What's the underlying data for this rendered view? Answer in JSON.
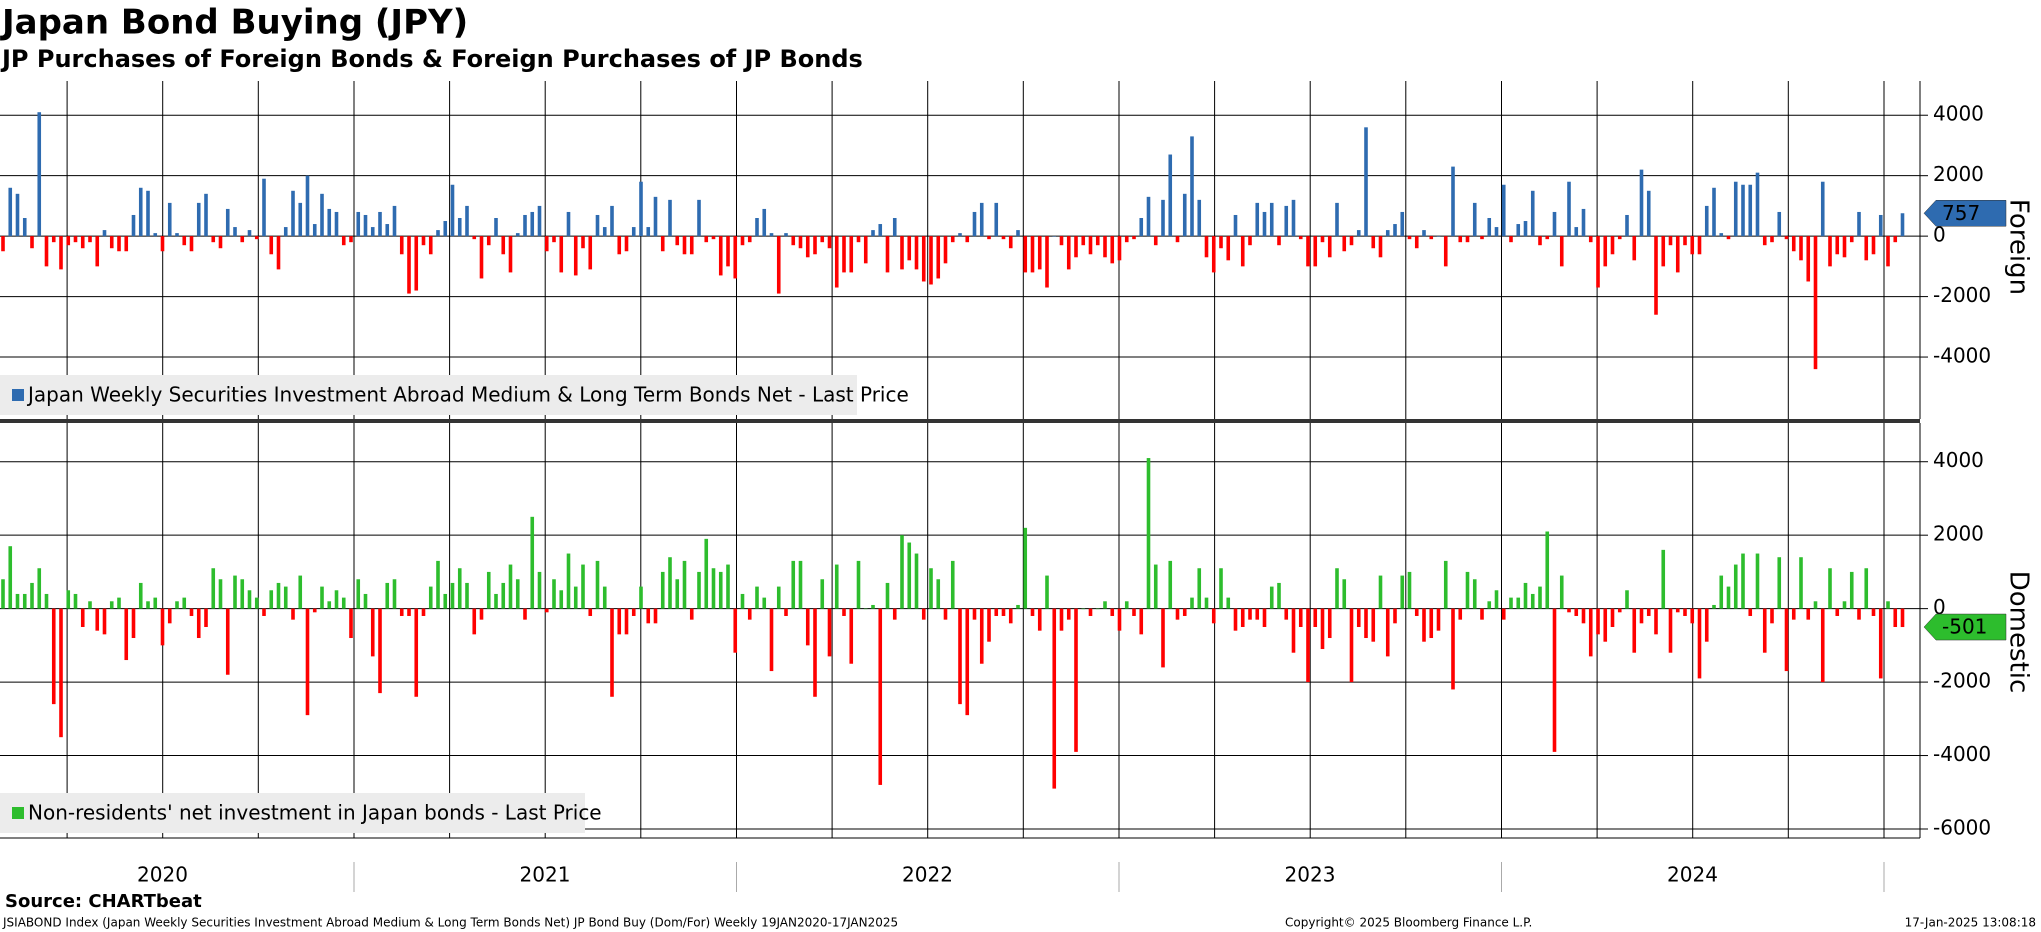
{
  "header": {
    "title": "Japan Bond Buying (JPY)",
    "subtitle": "JP Purchases of Foreign Bonds & Foreign Purchases of JP Bonds"
  },
  "x_axis": {
    "labels": [
      "2020",
      "2021",
      "2022",
      "2023",
      "2024"
    ]
  },
  "chart_data": [
    {
      "type": "bar",
      "axis_label": "Foreign",
      "ylim": [
        -6000,
        5000
      ],
      "yticks": [
        -4000,
        -2000,
        0,
        2000,
        4000
      ],
      "grid": true,
      "legend": "bottom-left",
      "tag_text_color": "#ffffff",
      "series": [
        {
          "name": "Japan Weekly Securities Investment Abroad Medium & Long Term Bonds Net - Last Price",
          "color": "#2e6bb0",
          "negative_color": "#ff0000",
          "values": [
            -500,
            1600,
            1400,
            600,
            -400,
            4100,
            -1000,
            -200,
            -1100,
            -300,
            -200,
            -400,
            -200,
            -1000,
            200,
            -400,
            -500,
            -500,
            700,
            1600,
            1500,
            100,
            -500,
            1100,
            100,
            -300,
            -500,
            1100,
            1400,
            -200,
            -400,
            900,
            300,
            -200,
            200,
            -100,
            1900,
            -600,
            -1100,
            300,
            1500,
            1100,
            2000,
            400,
            1400,
            900,
            800,
            -300,
            -200,
            800,
            700,
            300,
            800,
            400,
            1000,
            -600,
            -1900,
            -1800,
            -300,
            -600,
            200,
            500,
            1700,
            600,
            1000,
            -100,
            -1400,
            -300,
            600,
            -600,
            -1200,
            100,
            700,
            800,
            1000,
            -500,
            -200,
            -1200,
            800,
            -1300,
            -400,
            -1100,
            700,
            300,
            1000,
            -600,
            -500,
            300,
            1800,
            300,
            1300,
            -500,
            1200,
            -300,
            -600,
            -600,
            1200,
            -200,
            -100,
            -1300,
            -1000,
            -1400,
            -300,
            -200,
            600,
            900,
            100,
            -1900,
            100,
            -300,
            -400,
            -700,
            -600,
            -200,
            -400,
            -1700,
            -1200,
            -1200,
            -200,
            -900,
            200,
            400,
            -1200,
            600,
            -1100,
            -800,
            -1100,
            -1500,
            -1600,
            -1400,
            -900,
            -200,
            100,
            -200,
            800,
            1100,
            -100,
            1100,
            -100,
            -400,
            200,
            -1200,
            -1200,
            -1100,
            -1700,
            0,
            -300,
            -1100,
            -700,
            -300,
            -600,
            -300,
            -700,
            -900,
            -800,
            -200,
            -100,
            600,
            1300,
            -300,
            1200,
            2700,
            -200,
            1400,
            3300,
            1200,
            -700,
            -1200,
            -400,
            -800,
            700,
            -1000,
            -300,
            1100,
            800,
            1100,
            -300,
            1000,
            1200,
            -100,
            -1000,
            -1000,
            -200,
            -700,
            1100,
            -500,
            -300,
            200,
            3600,
            -400,
            -700,
            200,
            400,
            800,
            -100,
            -400,
            200,
            -100,
            0,
            -1000,
            2300,
            -200,
            -200,
            1100,
            -100,
            600,
            300,
            1700,
            -200,
            400,
            500,
            1500,
            -300,
            -100,
            800,
            -1000,
            1800,
            300,
            900,
            -200,
            -1700,
            -1000,
            -600,
            -100,
            700,
            -800,
            2200,
            1500,
            -2600,
            -1000,
            -300,
            -1200,
            -300,
            -600,
            -600,
            1000,
            1600,
            100,
            -100,
            1800,
            1700,
            1700,
            2100,
            -300,
            -200,
            800,
            -100,
            -500,
            -800,
            -1500,
            -4400,
            1800,
            -1000,
            -600,
            -700,
            -200,
            800,
            -800,
            -600,
            700,
            -1000,
            -200,
            757
          ]
        }
      ]
    },
    {
      "type": "bar",
      "axis_label": "Domestic",
      "ylim": [
        -6000,
        5000
      ],
      "yticks": [
        -6000,
        -4000,
        -2000,
        0,
        2000,
        4000
      ],
      "grid": true,
      "legend": "bottom-left",
      "tag_text_color": "#000000",
      "series": [
        {
          "name": "Non-residents' net investment in Japan bonds - Last Price",
          "color": "#2dbd2d",
          "negative_color": "#ff0000",
          "values": [
            800,
            1700,
            400,
            400,
            700,
            1100,
            400,
            -2600,
            -3500,
            500,
            400,
            -500,
            200,
            -600,
            -700,
            200,
            300,
            -1400,
            -800,
            700,
            200,
            300,
            -1000,
            -400,
            200,
            300,
            -200,
            -800,
            -500,
            1100,
            800,
            -1800,
            900,
            800,
            500,
            300,
            -200,
            500,
            700,
            600,
            -300,
            900,
            -2900,
            -100,
            600,
            200,
            500,
            300,
            -800,
            800,
            400,
            -1300,
            -2300,
            700,
            800,
            -200,
            -200,
            -2400,
            -200,
            600,
            1300,
            400,
            700,
            1100,
            700,
            -700,
            -300,
            1000,
            400,
            700,
            1200,
            800,
            -300,
            2500,
            1000,
            -100,
            800,
            500,
            1500,
            600,
            1200,
            -200,
            1300,
            600,
            -2400,
            -700,
            -700,
            -200,
            600,
            -400,
            -400,
            1000,
            1400,
            800,
            1300,
            -300,
            1000,
            1900,
            1100,
            1000,
            1200,
            -1200,
            400,
            -300,
            600,
            300,
            -1700,
            600,
            -200,
            1300,
            1300,
            -1000,
            -2400,
            800,
            -1300,
            1200,
            -200,
            -1500,
            1300,
            0,
            100,
            -4800,
            700,
            -300,
            2000,
            1800,
            1500,
            -300,
            1100,
            800,
            -300,
            1300,
            -2600,
            -2900,
            -300,
            -1500,
            -900,
            -200,
            -200,
            -400,
            100,
            2200,
            -200,
            -600,
            900,
            -4900,
            -600,
            -300,
            -3900,
            0,
            -200,
            0,
            200,
            -200,
            -600,
            200,
            -200,
            -700,
            4100,
            1200,
            -1600,
            1300,
            -300,
            -200,
            300,
            1100,
            300,
            -400,
            1100,
            300,
            -600,
            -500,
            -300,
            -300,
            -500,
            600,
            700,
            -300,
            -1200,
            -500,
            -2000,
            -500,
            -1100,
            -800,
            1100,
            800,
            -2000,
            -500,
            -800,
            -900,
            900,
            -1300,
            -400,
            900,
            1000,
            -200,
            -900,
            -800,
            -600,
            1300,
            -2200,
            -300,
            1000,
            800,
            -300,
            200,
            500,
            -300,
            300,
            300,
            700,
            400,
            600,
            2100,
            -3900,
            900,
            -100,
            -200,
            -400,
            -1300,
            -700,
            -900,
            -500,
            -100,
            500,
            -1200,
            -400,
            -200,
            -700,
            1600,
            -1200,
            -100,
            -200,
            -400,
            -1900,
            -900,
            100,
            900,
            600,
            1200,
            1500,
            -200,
            1500,
            -1200,
            -400,
            1400,
            -1700,
            -300,
            1400,
            -300,
            200,
            -2000,
            1100,
            -200,
            200,
            1000,
            -300,
            1100,
            -200,
            -1900,
            200,
            -500,
            -501
          ]
        }
      ]
    }
  ],
  "footer": {
    "source": "Source: CHARTbeat",
    "description": "JSIABOND Index (Japan Weekly Securities Investment Abroad Medium & Long Term Bonds Net) JP Bond Buy (Dom/For)  Weekly 19JAN2020-17JAN2025",
    "copyright": "Copyright© 2025 Bloomberg Finance L.P.",
    "timestamp": "17-Jan-2025 13:08:18"
  }
}
